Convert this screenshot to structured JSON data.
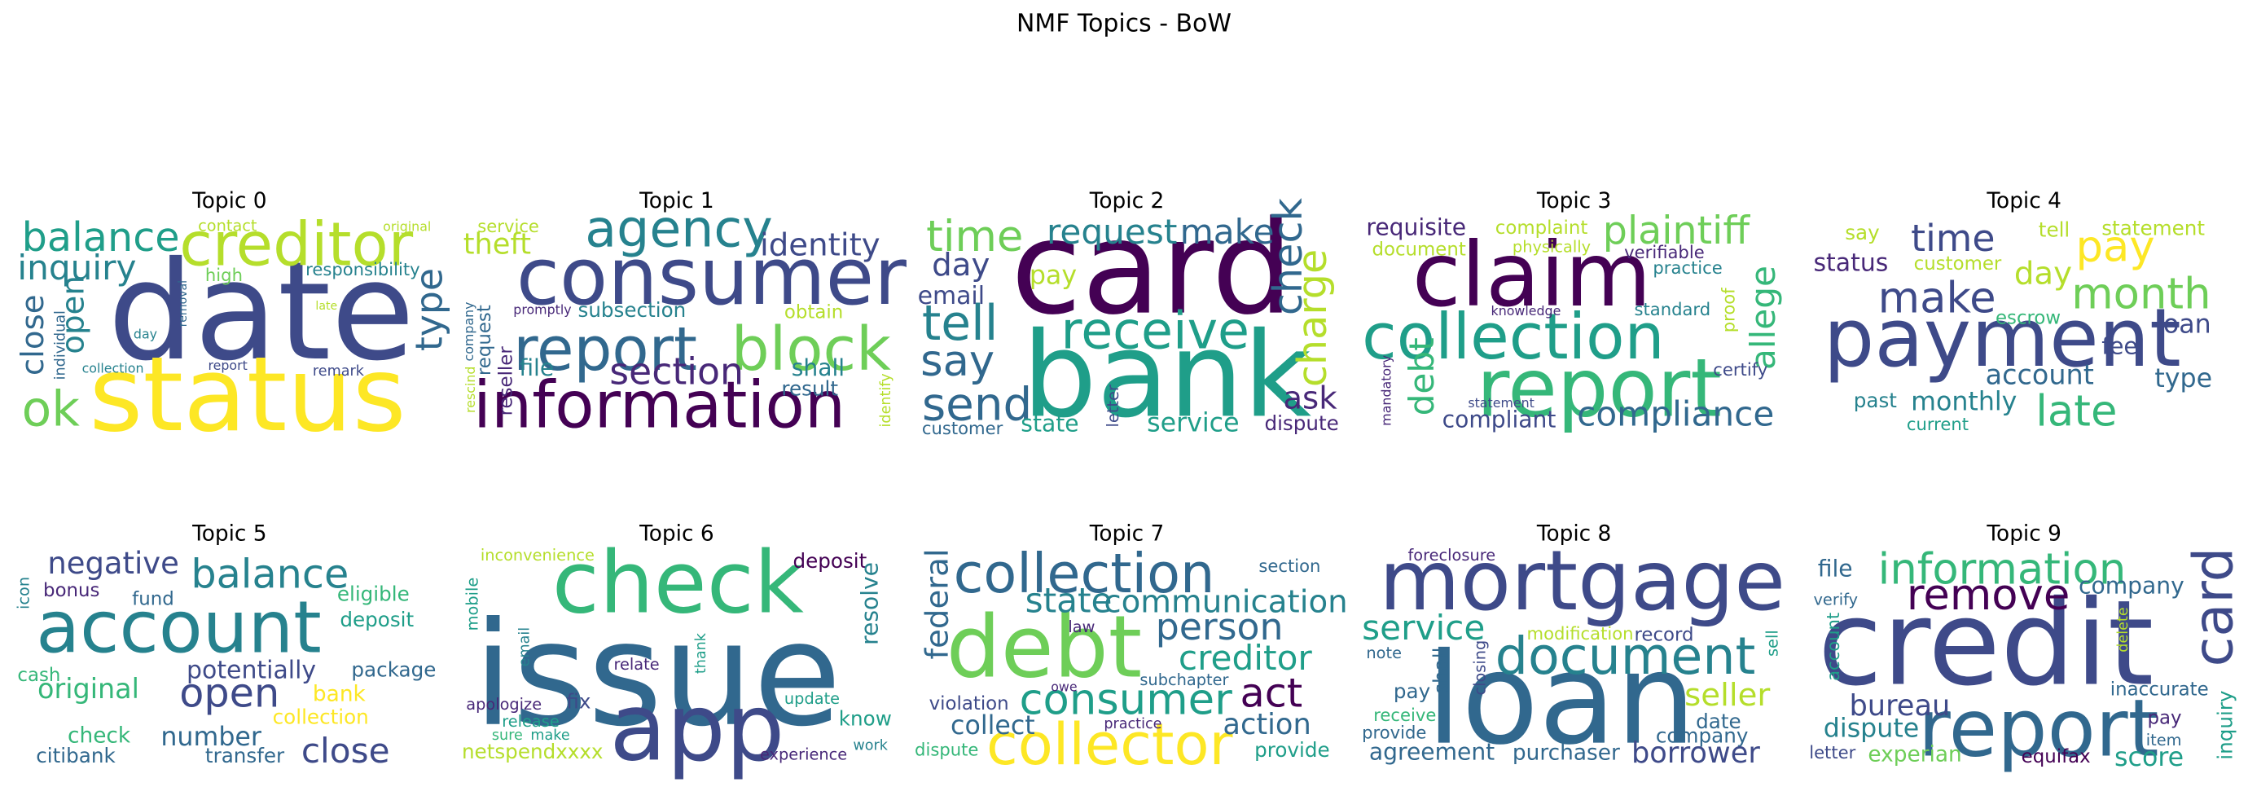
{
  "title": "NMF Topics - BoW",
  "chart_data": [
    {
      "type": "wordcloud",
      "title": "Topic 0",
      "words": [
        "date",
        "status",
        "creditor",
        "balance",
        "inquiry",
        "close",
        "open",
        "ok",
        "type",
        "responsibility",
        "high",
        "contact",
        "original",
        "individual",
        "removal",
        "day",
        "collection",
        "report",
        "remark",
        "late"
      ]
    },
    {
      "type": "wordcloud",
      "title": "Topic 1",
      "words": [
        "consumer",
        "information",
        "report",
        "block",
        "agency",
        "section",
        "identity",
        "theft",
        "service",
        "file",
        "shall",
        "result",
        "obtain",
        "subsection",
        "promptly",
        "company",
        "request",
        "rescind",
        "reseller",
        "identify"
      ]
    },
    {
      "type": "wordcloud",
      "title": "Topic 2",
      "words": [
        "card",
        "bank",
        "receive",
        "time",
        "request",
        "make",
        "check",
        "charge",
        "day",
        "email",
        "tell",
        "say",
        "send",
        "pay",
        "ask",
        "state",
        "service",
        "dispute",
        "customer",
        "letter"
      ]
    },
    {
      "type": "wordcloud",
      "title": "Topic 3",
      "words": [
        "claim",
        "collection",
        "report",
        "plaintiff",
        "compliance",
        "requisite",
        "complaint",
        "document",
        "physically",
        "verifiable",
        "practice",
        "allege",
        "proof",
        "standard",
        "knowledge",
        "certify",
        "debt",
        "mandatory",
        "compliant",
        "statement"
      ]
    },
    {
      "type": "wordcloud",
      "title": "Topic 4",
      "words": [
        "payment",
        "make",
        "time",
        "pay",
        "month",
        "late",
        "say",
        "tell",
        "statement",
        "status",
        "customer",
        "day",
        "escrow",
        "loan",
        "fee",
        "account",
        "type",
        "monthly",
        "past",
        "current"
      ]
    },
    {
      "type": "wordcloud",
      "title": "Topic 5",
      "words": [
        "account",
        "balance",
        "negative",
        "bonus",
        "fund",
        "eligible",
        "deposit",
        "icon",
        "cash",
        "potentially",
        "package",
        "original",
        "open",
        "bank",
        "collection",
        "number",
        "check",
        "citibank",
        "transfer",
        "close"
      ]
    },
    {
      "type": "wordcloud",
      "title": "Topic 6",
      "words": [
        "issue",
        "check",
        "app",
        "inconvenience",
        "deposit",
        "resolve",
        "mobile",
        "email",
        "relate",
        "thank",
        "apologize",
        "fix",
        "release",
        "sure",
        "make",
        "netspendxxxx",
        "update",
        "know",
        "work",
        "experience"
      ]
    },
    {
      "type": "wordcloud",
      "title": "Topic 7",
      "words": [
        "collection",
        "debt",
        "collector",
        "state",
        "communication",
        "person",
        "creditor",
        "consumer",
        "act",
        "action",
        "federal",
        "section",
        "law",
        "subchapter",
        "owe",
        "violation",
        "collect",
        "practice",
        "dispute",
        "provide"
      ]
    },
    {
      "type": "wordcloud",
      "title": "Topic 8",
      "words": [
        "mortgage",
        "loan",
        "document",
        "service",
        "seller",
        "foreclosure",
        "modification",
        "record",
        "sell",
        "note",
        "shall",
        "closing",
        "pay",
        "receive",
        "provide",
        "date",
        "company",
        "agreement",
        "purchaser",
        "borrower"
      ]
    },
    {
      "type": "wordcloud",
      "title": "Topic 9",
      "words": [
        "credit",
        "report",
        "information",
        "remove",
        "card",
        "file",
        "verify",
        "company",
        "account",
        "delete",
        "inaccurate",
        "bureau",
        "dispute",
        "pay",
        "item",
        "inquiry",
        "letter",
        "experian",
        "equifax",
        "score"
      ]
    }
  ]
}
